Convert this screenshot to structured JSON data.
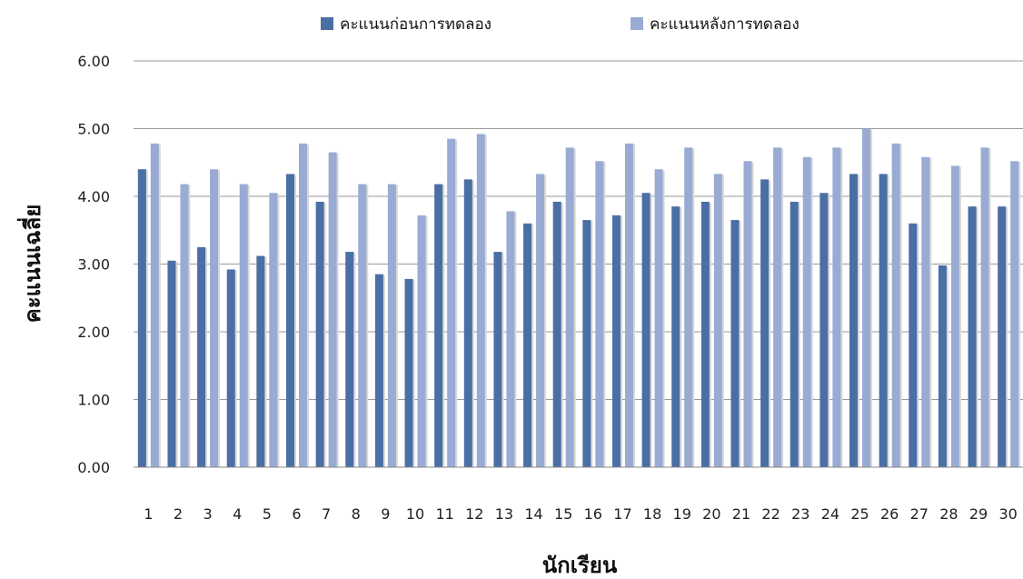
{
  "chart_data": {
    "type": "bar",
    "title": "",
    "xlabel": "นักเรียน",
    "ylabel": "คะแนนเฉลี่ย",
    "ylim": [
      0,
      6
    ],
    "yticks": [
      "0.00",
      "1.00",
      "2.00",
      "3.00",
      "4.00",
      "5.00",
      "6.00"
    ],
    "grid": true,
    "legend": "top-center",
    "categories": [
      "1",
      "2",
      "3",
      "4",
      "5",
      "6",
      "7",
      "8",
      "9",
      "10",
      "11",
      "12",
      "13",
      "14",
      "15",
      "16",
      "17",
      "18",
      "19",
      "20",
      "21",
      "22",
      "23",
      "24",
      "25",
      "26",
      "27",
      "28",
      "29",
      "30"
    ],
    "series": [
      {
        "name": "คะแนนก่อนการทดลอง",
        "color": "#4a6fa5",
        "values": [
          4.4,
          3.05,
          3.25,
          2.92,
          3.12,
          4.33,
          3.92,
          3.18,
          2.85,
          2.78,
          4.18,
          4.25,
          3.18,
          3.6,
          3.92,
          3.65,
          3.72,
          4.05,
          3.85,
          3.92,
          3.65,
          4.25,
          3.92,
          4.05,
          4.33,
          4.33,
          3.6,
          2.98,
          3.85,
          3.85
        ]
      },
      {
        "name": "คะแนนหลังการทดลอง",
        "color": "#99abd3",
        "values": [
          4.78,
          4.18,
          4.4,
          4.18,
          4.05,
          4.78,
          4.65,
          4.18,
          4.18,
          3.72,
          4.85,
          4.92,
          3.78,
          4.33,
          4.72,
          4.52,
          4.78,
          4.4,
          4.72,
          4.33,
          4.52,
          4.72,
          4.58,
          4.72,
          5.0,
          4.78,
          4.58,
          4.45,
          4.72,
          4.52
        ]
      }
    ]
  }
}
